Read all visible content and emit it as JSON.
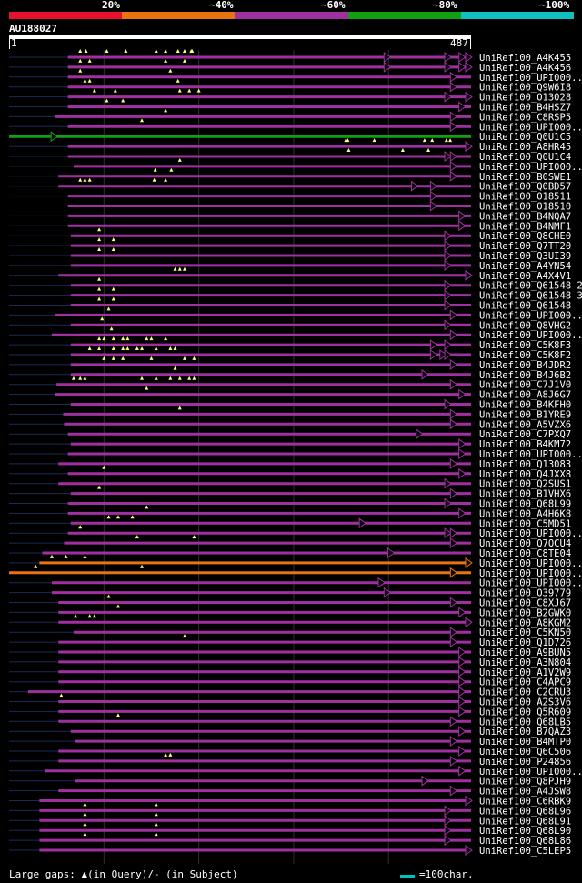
{
  "legend": {
    "colors": [
      "#e8102c",
      "#e87410",
      "#a030a0",
      "#10a010",
      "#10c0c0"
    ],
    "labels": [
      "20%",
      "~40%",
      "~60%",
      "~80%",
      "~100%"
    ]
  },
  "query": {
    "name": "AU188027",
    "start": "1",
    "end": "487",
    "length": 487
  },
  "footer": {
    "left_text": "Large gaps: ▲(in Query)/- (in Subject)",
    "right_text": "=100char."
  },
  "hits": [
    {
      "name": "UniRef100_A4K455",
      "start": 62,
      "end": 487,
      "color": "purple",
      "arrows": [
        401,
        465,
        480,
        487
      ],
      "triangles": [
        75,
        81,
        103,
        123,
        155,
        165,
        178,
        185,
        192,
        193
      ]
    },
    {
      "name": "UniRef100_A4K456",
      "start": 62,
      "end": 487,
      "color": "purple",
      "arrows": [
        401,
        465,
        480,
        487
      ],
      "triangles": [
        75,
        85,
        165,
        185
      ]
    },
    {
      "name": "UniRef100_UPI000..",
      "start": 62,
      "end": 487,
      "color": "purple",
      "arrows": [
        471
      ],
      "triangles": [
        75,
        170
      ]
    },
    {
      "name": "UniRef100_Q9W6I8",
      "start": 62,
      "end": 487,
      "color": "purple",
      "arrows": [
        471
      ],
      "triangles": [
        80,
        85,
        178
      ]
    },
    {
      "name": "UniRef100_O13028",
      "start": 62,
      "end": 487,
      "color": "purple",
      "arrows": [
        465,
        487
      ],
      "triangles": [
        90,
        112,
        180,
        190,
        200
      ]
    },
    {
      "name": "UniRef100_B4HSZ7",
      "start": 62,
      "end": 487,
      "color": "purple",
      "arrows": [
        480
      ],
      "triangles": [
        103,
        120
      ]
    },
    {
      "name": "UniRef100_C8RSP5",
      "start": 48,
      "end": 487,
      "color": "purple",
      "arrows": [
        471
      ],
      "triangles": [
        165
      ]
    },
    {
      "name": "UniRef100_UPI000..",
      "start": 62,
      "end": 487,
      "color": "purple",
      "arrows": [
        471
      ],
      "triangles": [
        140
      ]
    },
    {
      "name": "UniRef100_Q0U1C5",
      "start": 0,
      "end": 487,
      "color": "green",
      "arrows": [
        50
      ],
      "triangles": []
    },
    {
      "name": "UniRef100_A8HR45",
      "start": 62,
      "end": 487,
      "color": "purple",
      "arrows": [
        487
      ],
      "triangles": [
        355,
        357,
        385,
        438,
        446,
        461,
        465
      ]
    },
    {
      "name": "UniRef100_Q0U1C4",
      "start": 62,
      "end": 487,
      "color": "purple",
      "arrows": [
        465,
        471
      ],
      "triangles": [
        358,
        415,
        442
      ]
    },
    {
      "name": "UniRef100_UPI000..",
      "start": 68,
      "end": 487,
      "color": "purple",
      "arrows": [
        471
      ],
      "triangles": [
        180
      ]
    },
    {
      "name": "UniRef100_B0SWE1",
      "start": 52,
      "end": 487,
      "color": "purple",
      "arrows": [
        471
      ],
      "triangles": [
        154,
        171
      ]
    },
    {
      "name": "UniRef100_Q0BD57",
      "start": 52,
      "end": 487,
      "color": "purple",
      "arrows": [
        430,
        450
      ],
      "triangles": [
        75,
        80,
        85,
        153,
        165
      ]
    },
    {
      "name": "UniRef100_O18511",
      "start": 62,
      "end": 487,
      "color": "purple",
      "arrows": [
        450
      ],
      "triangles": []
    },
    {
      "name": "UniRef100_O18510",
      "start": 62,
      "end": 487,
      "color": "purple",
      "arrows": [
        450
      ],
      "triangles": []
    },
    {
      "name": "UniRef100_B4NQA7",
      "start": 62,
      "end": 487,
      "color": "purple",
      "arrows": [
        480
      ],
      "triangles": []
    },
    {
      "name": "UniRef100_B4NMF1",
      "start": 62,
      "end": 487,
      "color": "purple",
      "arrows": [
        480
      ],
      "triangles": []
    },
    {
      "name": "UniRef100_Q8CHE0",
      "start": 65,
      "end": 487,
      "color": "purple",
      "arrows": [
        465
      ],
      "triangles": [
        95
      ]
    },
    {
      "name": "UniRef100_Q7TT20",
      "start": 65,
      "end": 487,
      "color": "purple",
      "arrows": [
        465
      ],
      "triangles": [
        95,
        110
      ]
    },
    {
      "name": "UniRef100_Q3UI39",
      "start": 65,
      "end": 487,
      "color": "purple",
      "arrows": [
        465
      ],
      "triangles": [
        95,
        110
      ]
    },
    {
      "name": "UniRef100_A4YN54",
      "start": 65,
      "end": 487,
      "color": "purple",
      "arrows": [
        465
      ],
      "triangles": []
    },
    {
      "name": "UniRef100_A4X4V1",
      "start": 52,
      "end": 487,
      "color": "purple",
      "arrows": [
        487
      ],
      "triangles": [
        175,
        180,
        185
      ]
    },
    {
      "name": "UniRef100_Q61548-2",
      "start": 65,
      "end": 487,
      "color": "purple",
      "arrows": [
        465
      ],
      "triangles": [
        95
      ]
    },
    {
      "name": "UniRef100_Q61548-3",
      "start": 65,
      "end": 487,
      "color": "purple",
      "arrows": [
        465
      ],
      "triangles": [
        95,
        110
      ]
    },
    {
      "name": "UniRef100_Q61548",
      "start": 65,
      "end": 487,
      "color": "purple",
      "arrows": [
        465
      ],
      "triangles": [
        95,
        110
      ]
    },
    {
      "name": "UniRef100_UPI000..",
      "start": 48,
      "end": 487,
      "color": "purple",
      "arrows": [
        471
      ],
      "triangles": [
        105
      ]
    },
    {
      "name": "UniRef100_Q8VHG2",
      "start": 65,
      "end": 487,
      "color": "purple",
      "arrows": [
        465
      ],
      "triangles": [
        98
      ]
    },
    {
      "name": "UniRef100_UPI000..",
      "start": 45,
      "end": 487,
      "color": "purple",
      "arrows": [
        471
      ],
      "triangles": [
        108
      ]
    },
    {
      "name": "UniRef100_C5K8F3",
      "start": 65,
      "end": 487,
      "color": "purple",
      "arrows": [
        450,
        465
      ],
      "triangles": [
        95,
        100,
        110,
        120,
        125,
        145,
        150,
        165
      ]
    },
    {
      "name": "UniRef100_C5K8F2",
      "start": 65,
      "end": 487,
      "color": "purple",
      "arrows": [
        450,
        460,
        465
      ],
      "triangles": [
        85,
        95,
        110,
        120,
        125,
        135,
        140,
        155,
        170,
        175
      ]
    },
    {
      "name": "UniRef100_B4JDR2",
      "start": 65,
      "end": 487,
      "color": "purple",
      "arrows": [
        471
      ],
      "triangles": [
        100,
        110,
        120,
        150,
        185,
        195
      ]
    },
    {
      "name": "UniRef100_B4J6B2",
      "start": 65,
      "end": 487,
      "color": "purple",
      "arrows": [
        441
      ],
      "triangles": [
        175
      ]
    },
    {
      "name": "UniRef100_C7J1V0",
      "start": 50,
      "end": 487,
      "color": "purple",
      "arrows": [
        471
      ],
      "triangles": [
        68,
        75,
        80,
        140,
        155,
        170,
        180,
        190,
        195
      ]
    },
    {
      "name": "UniRef100_A8J6G7",
      "start": 48,
      "end": 487,
      "color": "purple",
      "arrows": [
        480
      ],
      "triangles": [
        145
      ]
    },
    {
      "name": "UniRef100_B4KFH0",
      "start": 65,
      "end": 487,
      "color": "purple",
      "arrows": [
        465
      ],
      "triangles": []
    },
    {
      "name": "UniRef100_B1YRE9",
      "start": 57,
      "end": 487,
      "color": "purple",
      "arrows": [
        471
      ],
      "triangles": [
        180
      ]
    },
    {
      "name": "UniRef100_A5VZX6",
      "start": 58,
      "end": 487,
      "color": "purple",
      "arrows": [
        471
      ],
      "triangles": []
    },
    {
      "name": "UniRef100_C7PXQ7",
      "start": 62,
      "end": 487,
      "color": "purple",
      "arrows": [
        435
      ],
      "triangles": []
    },
    {
      "name": "UniRef100_B4KM72",
      "start": 65,
      "end": 487,
      "color": "purple",
      "arrows": [
        480
      ],
      "triangles": []
    },
    {
      "name": "UniRef100_UPI000..",
      "start": 62,
      "end": 487,
      "color": "purple",
      "arrows": [
        480
      ],
      "triangles": []
    },
    {
      "name": "UniRef100_Q13083",
      "start": 52,
      "end": 487,
      "color": "purple",
      "arrows": [
        471
      ],
      "triangles": []
    },
    {
      "name": "UniRef100_Q4JXX8",
      "start": 62,
      "end": 487,
      "color": "purple",
      "arrows": [
        480
      ],
      "triangles": [
        100
      ]
    },
    {
      "name": "UniRef100_Q2SUS1",
      "start": 52,
      "end": 487,
      "color": "purple",
      "arrows": [
        465
      ],
      "triangles": []
    },
    {
      "name": "UniRef100_B1VHX6",
      "start": 65,
      "end": 487,
      "color": "purple",
      "arrows": [
        471
      ],
      "triangles": [
        95
      ]
    },
    {
      "name": "UniRef100_Q68L99",
      "start": 62,
      "end": 487,
      "color": "purple",
      "arrows": [
        465
      ],
      "triangles": []
    },
    {
      "name": "UniRef100_A4H6K8",
      "start": 62,
      "end": 487,
      "color": "purple",
      "arrows": [
        480
      ],
      "triangles": [
        145
      ]
    },
    {
      "name": "UniRef100_C5MD51",
      "start": 65,
      "end": 487,
      "color": "purple",
      "arrows": [
        375
      ],
      "triangles": [
        105,
        115,
        130
      ]
    },
    {
      "name": "UniRef100_UPI000..",
      "start": 62,
      "end": 487,
      "color": "purple",
      "arrows": [
        465,
        471
      ],
      "triangles": [
        75
      ]
    },
    {
      "name": "UniRef100_Q7QCU4",
      "start": 58,
      "end": 487,
      "color": "purple",
      "arrows": [
        471
      ],
      "triangles": [
        135,
        195
      ]
    },
    {
      "name": "UniRef100_C8TE04",
      "start": 35,
      "end": 487,
      "color": "purple",
      "arrows": [
        405
      ],
      "triangles": []
    },
    {
      "name": "UniRef100_UPI000..",
      "start": 32,
      "end": 487,
      "color": "orange",
      "arrows": [
        487
      ],
      "triangles": [
        45,
        60,
        80
      ]
    },
    {
      "name": "UniRef100_UPI000..",
      "start": 0,
      "end": 487,
      "color": "orange",
      "arrows": [
        471
      ],
      "triangles": [
        28,
        140
      ]
    },
    {
      "name": "UniRef100_UPI000..",
      "start": 45,
      "end": 487,
      "color": "purple",
      "arrows": [
        395
      ],
      "triangles": []
    },
    {
      "name": "UniRef100_O39779",
      "start": 45,
      "end": 487,
      "color": "purple",
      "arrows": [
        401
      ],
      "triangles": []
    },
    {
      "name": "UniRef100_C8XJ67",
      "start": 52,
      "end": 487,
      "color": "purple",
      "arrows": [
        471
      ],
      "triangles": [
        105
      ]
    },
    {
      "name": "UniRef100_B2GWK0",
      "start": 52,
      "end": 487,
      "color": "purple",
      "arrows": [
        480
      ],
      "triangles": [
        115
      ]
    },
    {
      "name": "UniRef100_A8KGM2",
      "start": 52,
      "end": 487,
      "color": "purple",
      "arrows": [
        487
      ],
      "triangles": [
        70,
        85,
        90
      ]
    },
    {
      "name": "UniRef100_C5KN50",
      "start": 68,
      "end": 487,
      "color": "purple",
      "arrows": [
        471
      ],
      "triangles": []
    },
    {
      "name": "UniRef100_Q1D726",
      "start": 52,
      "end": 487,
      "color": "purple",
      "arrows": [
        471
      ],
      "triangles": [
        185
      ]
    },
    {
      "name": "UniRef100_A9BUN5",
      "start": 52,
      "end": 487,
      "color": "purple",
      "arrows": [
        480
      ],
      "triangles": []
    },
    {
      "name": "UniRef100_A3N804",
      "start": 52,
      "end": 487,
      "color": "purple",
      "arrows": [
        480
      ],
      "triangles": []
    },
    {
      "name": "UniRef100_A1V2W9",
      "start": 52,
      "end": 487,
      "color": "purple",
      "arrows": [
        480
      ],
      "triangles": []
    },
    {
      "name": "UniRef100_C4APC9",
      "start": 52,
      "end": 487,
      "color": "purple",
      "arrows": [
        480
      ],
      "triangles": []
    },
    {
      "name": "UniRef100_C2CRU3",
      "start": 20,
      "end": 487,
      "color": "purple",
      "arrows": [
        480
      ],
      "triangles": []
    },
    {
      "name": "UniRef100_A2S3V6",
      "start": 52,
      "end": 487,
      "color": "purple",
      "arrows": [
        480
      ],
      "triangles": [
        55
      ]
    },
    {
      "name": "UniRef100_Q5R609",
      "start": 52,
      "end": 487,
      "color": "purple",
      "arrows": [
        480
      ],
      "triangles": []
    },
    {
      "name": "UniRef100_Q68LB5",
      "start": 52,
      "end": 487,
      "color": "purple",
      "arrows": [
        471
      ],
      "triangles": [
        115
      ]
    },
    {
      "name": "UniRef100_B7QAZ3",
      "start": 65,
      "end": 487,
      "color": "purple",
      "arrows": [
        480
      ],
      "triangles": []
    },
    {
      "name": "UniRef100_B4MTP0",
      "start": 70,
      "end": 487,
      "color": "purple",
      "arrows": [
        471
      ],
      "triangles": []
    },
    {
      "name": "UniRef100_Q6C506",
      "start": 52,
      "end": 487,
      "color": "purple",
      "arrows": [
        480
      ],
      "triangles": []
    },
    {
      "name": "UniRef100_P24856",
      "start": 52,
      "end": 487,
      "color": "purple",
      "arrows": [
        471
      ],
      "triangles": [
        165,
        170
      ]
    },
    {
      "name": "UniRef100_UPI000..",
      "start": 38,
      "end": 487,
      "color": "purple",
      "arrows": [
        480
      ],
      "triangles": []
    },
    {
      "name": "UniRef100_Q8PJH9",
      "start": 70,
      "end": 487,
      "color": "purple",
      "arrows": [
        441
      ],
      "triangles": []
    },
    {
      "name": "UniRef100_A4JSW8",
      "start": 52,
      "end": 487,
      "color": "purple",
      "arrows": [
        471
      ],
      "triangles": []
    },
    {
      "name": "UniRef100_C6RBK9",
      "start": 32,
      "end": 487,
      "color": "purple",
      "arrows": [
        487
      ],
      "triangles": []
    },
    {
      "name": "UniRef100_Q68L96",
      "start": 32,
      "end": 487,
      "color": "purple",
      "arrows": [
        465
      ],
      "triangles": [
        80,
        155
      ]
    },
    {
      "name": "UniRef100_Q68L91",
      "start": 32,
      "end": 487,
      "color": "purple",
      "arrows": [
        465
      ],
      "triangles": [
        80,
        155
      ]
    },
    {
      "name": "UniRef100_Q68L90",
      "start": 32,
      "end": 487,
      "color": "purple",
      "arrows": [
        465
      ],
      "triangles": [
        80,
        155
      ]
    },
    {
      "name": "UniRef100_Q68L86",
      "start": 32,
      "end": 487,
      "color": "purple",
      "arrows": [
        465
      ],
      "triangles": [
        80,
        155
      ]
    },
    {
      "name": "UniRef100_C5LEP5",
      "start": 32,
      "end": 487,
      "color": "purple",
      "arrows": [
        487
      ],
      "triangles": []
    }
  ]
}
